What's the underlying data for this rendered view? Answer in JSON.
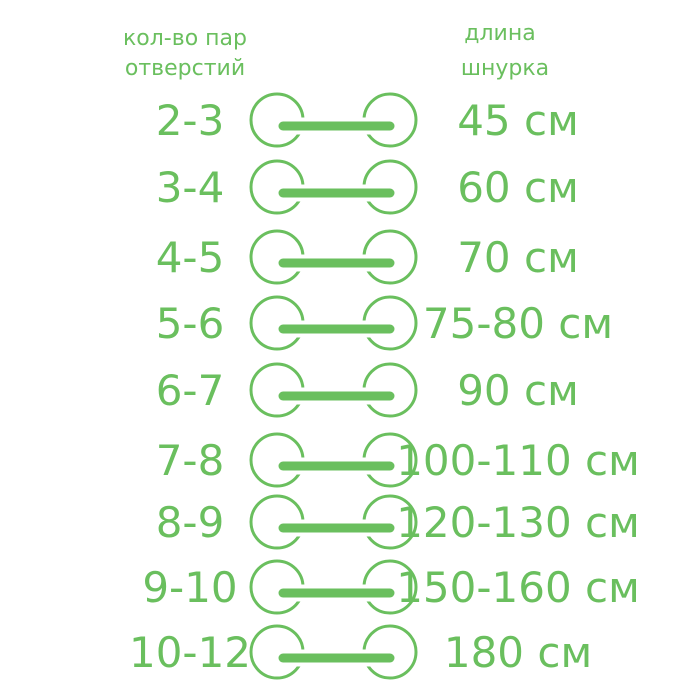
{
  "header": {
    "left": [
      "кол-во пар",
      "отверстий"
    ],
    "right": [
      "длина",
      "шнурка"
    ]
  },
  "accent_color": "#6abf5e",
  "rows": [
    {
      "pairs": "2-3",
      "length": "45 см"
    },
    {
      "pairs": "3-4",
      "length": "60 см"
    },
    {
      "pairs": "4-5",
      "length": "70 см"
    },
    {
      "pairs": "5-6",
      "length": "75-80 см"
    },
    {
      "pairs": "6-7",
      "length": "90 см"
    },
    {
      "pairs": "7-8",
      "length": "100-110 см"
    },
    {
      "pairs": "8-9",
      "length": "120-130 см"
    },
    {
      "pairs": "9-10",
      "length": "150-160 см"
    },
    {
      "pairs": "10-12",
      "length": "180 см"
    }
  ]
}
